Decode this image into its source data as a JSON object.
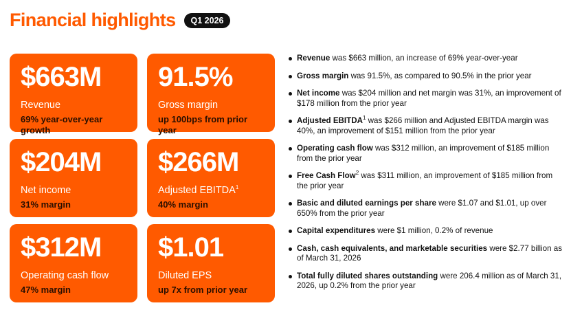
{
  "header": {
    "title": "Financial highlights",
    "badge": "Q1 2026"
  },
  "cards": [
    {
      "value": "$663M",
      "label": "Revenue",
      "sup": "",
      "sub": "69% year-over-year growth"
    },
    {
      "value": "91.5%",
      "label": "Gross margin",
      "sup": "",
      "sub": "up 100bps from prior year"
    },
    {
      "value": "$204M",
      "label": "Net income",
      "sup": "",
      "sub": "31% margin"
    },
    {
      "value": "$266M",
      "label": "Adjusted EBITDA",
      "sup": "1",
      "sub": "40% margin"
    },
    {
      "value": "$312M",
      "label": "Operating cash flow",
      "sup": "",
      "sub": "47% margin"
    },
    {
      "value": "$1.01",
      "label": "Diluted EPS",
      "sup": "",
      "sub": "up 7x from prior year"
    }
  ],
  "bullets": [
    {
      "term": "Revenue",
      "sup": "",
      "text": " was $663 million, an increase of 69% year-over-year"
    },
    {
      "term": "Gross margin",
      "sup": "",
      "text": " was 91.5%, as compared to 90.5% in the prior year"
    },
    {
      "term": "Net income",
      "sup": "",
      "text": " was $204 million and net margin was 31%, an improvement of $178 million from the prior year"
    },
    {
      "term": "Adjusted EBITDA",
      "sup": "1",
      "text": " was $266 million and Adjusted EBITDA margin was 40%, an improvement of $151 million from the prior year"
    },
    {
      "term": "Operating cash flow",
      "sup": "",
      "text": " was $312 million, an improvement of $185 million from the prior year"
    },
    {
      "term": "Free Cash Flow",
      "sup": "2",
      "text": " was $311 million, an improvement of $185 million from the prior year"
    },
    {
      "term": "Basic and diluted earnings per share",
      "sup": "",
      "text": " were $1.07 and $1.01, up over 650% from the prior year"
    },
    {
      "term": "Capital expenditures",
      "sup": "",
      "text": " were $1 million, 0.2% of revenue"
    },
    {
      "term": "Cash, cash equivalents, and marketable securities",
      "sup": "",
      "text": " were $2.77 billion as of March 31, 2026"
    },
    {
      "term": "Total fully diluted shares outstanding",
      "sup": "",
      "text": " were 206.4 million as of March 31, 2026, up 0.2% from the prior year"
    }
  ],
  "colors": {
    "accent": "#ff5a00",
    "badge_bg": "#111111",
    "card_sub_text": "#2a0f00"
  }
}
